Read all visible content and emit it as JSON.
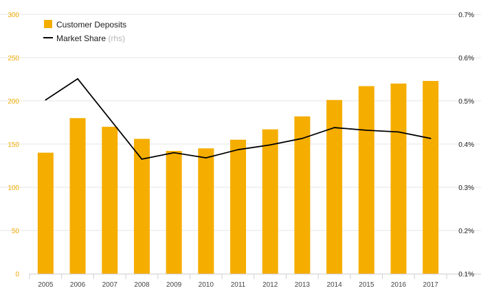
{
  "chart_data": {
    "type": "bar",
    "categories": [
      "2005",
      "2006",
      "2007",
      "2008",
      "2009",
      "2010",
      "2011",
      "2012",
      "2013",
      "2014",
      "2015",
      "2016",
      "2017"
    ],
    "series": [
      {
        "name": "Customer Deposits",
        "type": "bar",
        "axis": "left",
        "color": "#f5ad00",
        "values": [
          140,
          180,
          170,
          156,
          142,
          145,
          155,
          167,
          182,
          201,
          217,
          220,
          223
        ]
      },
      {
        "name": "Market Share",
        "name_suffix": "(rhs)",
        "type": "line",
        "axis": "right",
        "color": "#000000",
        "values": [
          0.502,
          0.551,
          0.458,
          0.365,
          0.38,
          0.368,
          0.387,
          0.398,
          0.413,
          0.438,
          0.432,
          0.428,
          0.413
        ]
      }
    ],
    "y_left": {
      "ylim": [
        0,
        300
      ],
      "ticks": [
        0,
        50,
        100,
        150,
        200,
        250,
        300
      ],
      "tick_labels": [
        "0",
        "50",
        "100",
        "150",
        "200",
        "250",
        "300"
      ],
      "color": "#f0ab00"
    },
    "y_right": {
      "ylim": [
        0.1,
        0.7
      ],
      "ticks": [
        0.1,
        0.2,
        0.3,
        0.4,
        0.5,
        0.6,
        0.7
      ],
      "tick_labels": [
        "0.1%",
        "0.2%",
        "0.3%",
        "0.4%",
        "0.5%",
        "0.6%",
        "0.7%"
      ]
    },
    "grid": true,
    "legend_position": "top-left",
    "title": "",
    "xlabel": "",
    "ylabel": ""
  }
}
